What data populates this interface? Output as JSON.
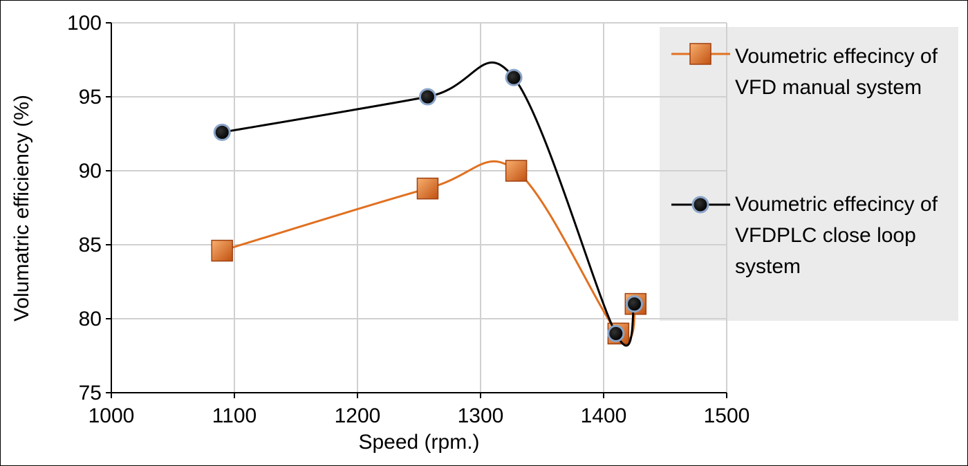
{
  "chart_data": {
    "type": "line",
    "smooth": true,
    "x_label": "Speed (rpm.)",
    "y_label": "Volumatric efficiency (%)",
    "xlim": [
      1000,
      1500
    ],
    "xticks": [
      1000,
      1100,
      1200,
      1300,
      1400,
      1500
    ],
    "ylim": [
      75,
      100
    ],
    "yticks": [
      75,
      80,
      85,
      90,
      95,
      100
    ],
    "grid": true,
    "legend": "right",
    "series": [
      {
        "name": "Voumetric effecincy of VFD manual system",
        "color": "#e07020",
        "marker": "square",
        "x": [
          1090,
          1257,
          1329,
          1412,
          1426
        ],
        "values": [
          84.6,
          88.8,
          90.0,
          79.0,
          81.0
        ]
      },
      {
        "name": "Voumetric effecincy of VFDPLC close loop system",
        "color": "#000000",
        "marker": "circle",
        "x": [
          1090,
          1257,
          1327,
          1410,
          1425
        ],
        "values": [
          92.6,
          95.0,
          96.3,
          79.0,
          81.0
        ]
      }
    ]
  }
}
